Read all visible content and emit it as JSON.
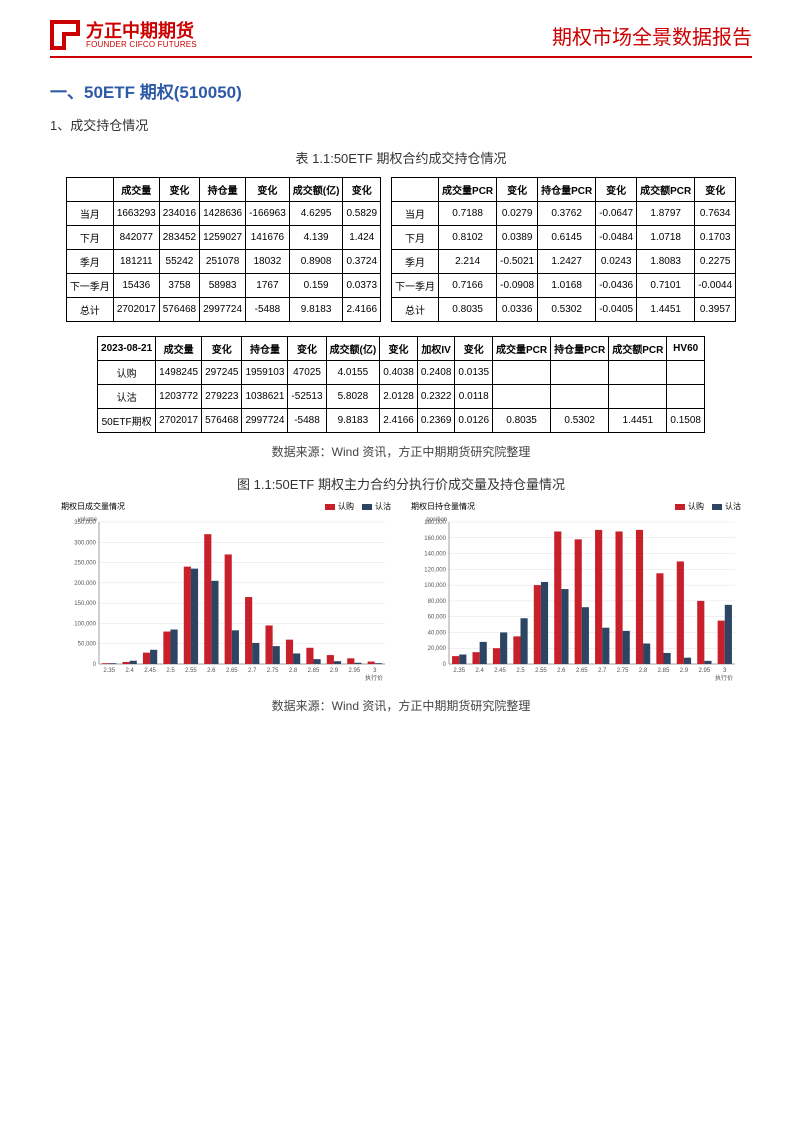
{
  "header": {
    "logo_cn": "方正中期期货",
    "logo_en": "FOUNDER CIFCO FUTURES",
    "report_title": "期权市场全景数据报告"
  },
  "section": {
    "title": "一、50ETF 期权(510050)",
    "subsection": "1、成交持仓情况",
    "table_caption": "表 1.1:50ETF 期权合约成交持仓情况",
    "source_note": "数据来源：Wind 资讯，方正中期期货研究院整理",
    "chart_caption": "图 1.1:50ETF 期权主力合约分执行价成交量及持仓量情况"
  },
  "table1": {
    "headers": [
      "",
      "成交量",
      "变化",
      "持仓量",
      "变化",
      "成交额(亿)",
      "变化"
    ],
    "rows": [
      [
        "当月",
        "1663293",
        "234016",
        "1428636",
        "-166963",
        "4.6295",
        "0.5829"
      ],
      [
        "下月",
        "842077",
        "283452",
        "1259027",
        "141676",
        "4.139",
        "1.424"
      ],
      [
        "季月",
        "181211",
        "55242",
        "251078",
        "18032",
        "0.8908",
        "0.3724"
      ],
      [
        "下一季月",
        "15436",
        "3758",
        "58983",
        "1767",
        "0.159",
        "0.0373"
      ],
      [
        "总计",
        "2702017",
        "576468",
        "2997724",
        "-5488",
        "9.8183",
        "2.4166"
      ]
    ]
  },
  "table2": {
    "headers": [
      "",
      "成交量PCR",
      "变化",
      "持仓量PCR",
      "变化",
      "成交额PCR",
      "变化"
    ],
    "rows": [
      [
        "当月",
        "0.7188",
        "0.0279",
        "0.3762",
        "-0.0647",
        "1.8797",
        "0.7634"
      ],
      [
        "下月",
        "0.8102",
        "0.0389",
        "0.6145",
        "-0.0484",
        "1.0718",
        "0.1703"
      ],
      [
        "季月",
        "2.214",
        "-0.5021",
        "1.2427",
        "0.0243",
        "1.8083",
        "0.2275"
      ],
      [
        "下一季月",
        "0.7166",
        "-0.0908",
        "1.0168",
        "-0.0436",
        "0.7101",
        "-0.0044"
      ],
      [
        "总计",
        "0.8035",
        "0.0336",
        "0.5302",
        "-0.0405",
        "1.4451",
        "0.3957"
      ]
    ]
  },
  "table3": {
    "headers": [
      "2023-08-21",
      "成交量",
      "变化",
      "持仓量",
      "变化",
      "成交额(亿)",
      "变化",
      "加权IV",
      "变化",
      "成交量PCR",
      "持仓量PCR",
      "成交额PCR",
      "HV60"
    ],
    "rows": [
      [
        "认购",
        "1498245",
        "297245",
        "1959103",
        "47025",
        "4.0155",
        "0.4038",
        "0.2408",
        "0.0135",
        "",
        "",
        "",
        ""
      ],
      [
        "认沽",
        "1203772",
        "279223",
        "1038621",
        "-52513",
        "5.8028",
        "2.0128",
        "0.2322",
        "0.0118",
        "",
        "",
        "",
        ""
      ],
      [
        "50ETF期权",
        "2702017",
        "576468",
        "2997724",
        "-5488",
        "9.8183",
        "2.4166",
        "0.2369",
        "0.0126",
        "0.8035",
        "0.5302",
        "1.4451",
        "0.1508"
      ]
    ]
  },
  "charts": {
    "legend_labels": [
      "认购",
      "认沽"
    ],
    "colors": {
      "call": "#c8202a",
      "put": "#2d4463",
      "axis": "#888",
      "grid": "#e0e0e0",
      "text": "#555"
    },
    "fontsize": {
      "axis": 6,
      "title": 8
    },
    "strikes": [
      "2.35",
      "2.4",
      "2.45",
      "2.5",
      "2.55",
      "2.6",
      "2.65",
      "2.7",
      "2.75",
      "2.8",
      "2.85",
      "2.9",
      "2.95",
      "3"
    ],
    "volume_chart": {
      "title": "期权日成交量情况",
      "xlabel": "执行价",
      "ylabel": "volume",
      "ylim": [
        0,
        350000
      ],
      "yticks": [
        0,
        50000,
        100000,
        150000,
        200000,
        250000,
        300000,
        350000
      ],
      "ytick_labels": [
        "0",
        "50,000",
        "100,000",
        "150,000",
        "200,000",
        "250,000",
        "300,000",
        "350,000"
      ],
      "call": [
        2000,
        5000,
        28000,
        80000,
        240000,
        320000,
        270000,
        165000,
        95000,
        60000,
        40000,
        22000,
        14000,
        6000
      ],
      "put": [
        2000,
        8000,
        35000,
        85000,
        235000,
        205000,
        83000,
        52000,
        44000,
        26000,
        12000,
        7000,
        3000,
        2000
      ]
    },
    "position_chart": {
      "title": "期权日持仓量情况",
      "xlabel": "执行价",
      "ylabel": "position",
      "ylim": [
        0,
        180000
      ],
      "yticks": [
        0,
        20000,
        40000,
        60000,
        80000,
        100000,
        120000,
        140000,
        160000,
        180000
      ],
      "ytick_labels": [
        "0",
        "20,000",
        "40,000",
        "60,000",
        "80,000",
        "100,000",
        "120,000",
        "140,000",
        "160,000",
        "180,000"
      ],
      "call": [
        10000,
        15000,
        20000,
        35000,
        100000,
        168000,
        158000,
        170000,
        168000,
        170000,
        115000,
        130000,
        80000,
        55000
      ],
      "put": [
        12000,
        28000,
        40000,
        58000,
        104000,
        95000,
        72000,
        46000,
        42000,
        26000,
        14000,
        8000,
        4000,
        75000
      ]
    }
  }
}
